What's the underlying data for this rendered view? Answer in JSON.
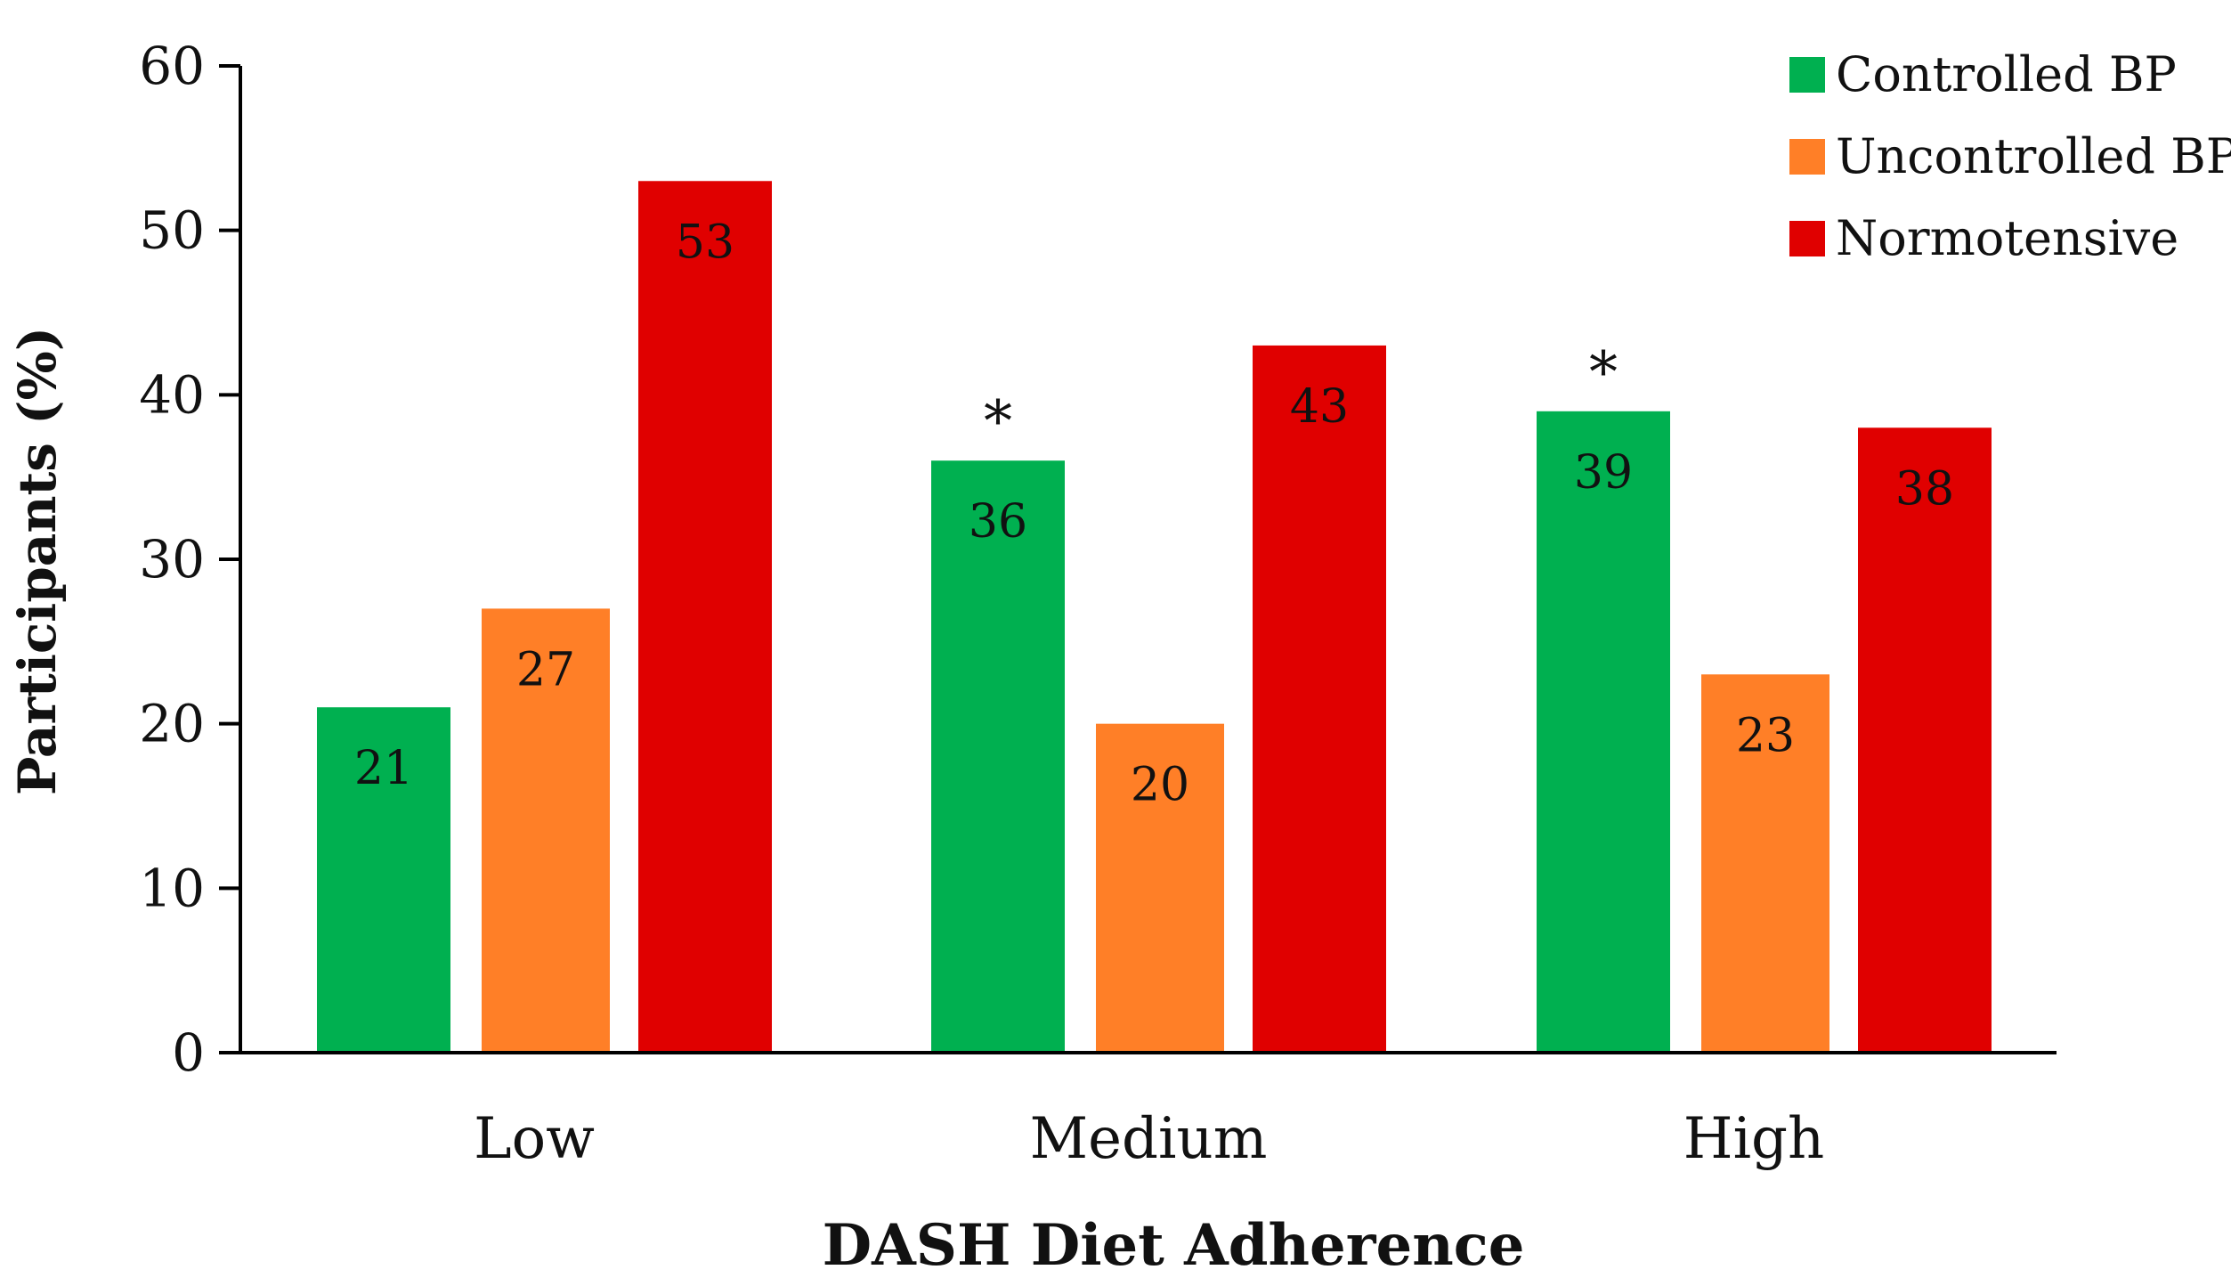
{
  "chart_data": {
    "type": "bar",
    "title": "",
    "xlabel": "DASH Diet Adherence",
    "ylabel": "Participants (%)",
    "ylim": [
      0,
      60
    ],
    "yticks": [
      0,
      10,
      20,
      30,
      40,
      50,
      60
    ],
    "grid": false,
    "legend_position": "top-right",
    "categories": [
      "Low",
      "Medium",
      "High"
    ],
    "series": [
      {
        "name": "Controlled BP",
        "color": "#00B050",
        "values": [
          21,
          36,
          39
        ]
      },
      {
        "name": "Uncontrolled BP",
        "color": "#FF7F27",
        "values": [
          27,
          20,
          23
        ]
      },
      {
        "name": "Normotensive",
        "color": "#E00000",
        "values": [
          53,
          43,
          38
        ]
      }
    ],
    "data_labels": [
      [
        "21",
        "36",
        "39"
      ],
      [
        "27",
        "20",
        "23"
      ],
      [
        "53",
        "43",
        "38"
      ]
    ],
    "annotations": [
      {
        "text": "*",
        "series": 0,
        "category": 1
      },
      {
        "text": "*",
        "series": 0,
        "category": 2
      }
    ]
  }
}
